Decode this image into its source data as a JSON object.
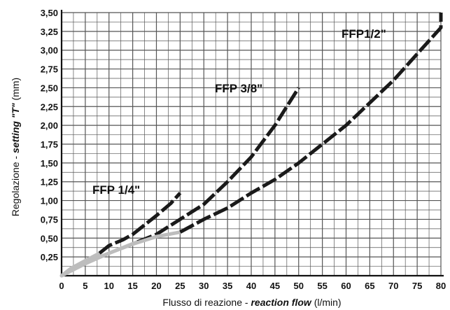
{
  "chart_data": {
    "type": "line",
    "xlabel_plain": "Flusso di reazione - ",
    "xlabel_em": "reaction flow",
    "xlabel_unit": " (l/min)",
    "ylabel_plain": "Regolazione - ",
    "ylabel_em": "setting \"T\"",
    "ylabel_unit": " (mm)",
    "xlim": [
      0,
      80
    ],
    "ylim": [
      0,
      3.5
    ],
    "x_ticks": [
      "0",
      "5",
      "10",
      "15",
      "20",
      "25",
      "30",
      "35",
      "40",
      "45",
      "50",
      "55",
      "60",
      "65",
      "70",
      "75",
      "80"
    ],
    "y_ticks": [
      "0,25",
      "0,50",
      "0,75",
      "1,00",
      "1,25",
      "1,50",
      "1,75",
      "2,00",
      "2,25",
      "2,50",
      "2,75",
      "3,00",
      "3,25",
      "3,50"
    ],
    "grid": true,
    "colors": {
      "dark": "#1a1a1a",
      "light": "#bdbdbd",
      "grid": "#555555"
    },
    "series": [
      {
        "name": "FFP 1/4\"",
        "gray_segment": [
          [
            0,
            0
          ],
          [
            2,
            0.1
          ],
          [
            5,
            0.2
          ],
          [
            8,
            0.3
          ]
        ],
        "dark_segment": [
          [
            8,
            0.3
          ],
          [
            10,
            0.4
          ],
          [
            13,
            0.48
          ],
          [
            15,
            0.55
          ],
          [
            18,
            0.7
          ],
          [
            20,
            0.8
          ],
          [
            23,
            0.96
          ],
          [
            25,
            1.1
          ]
        ]
      },
      {
        "name": "FFP 3/8\"",
        "gray_segment": [
          [
            0,
            0
          ],
          [
            3,
            0.1
          ],
          [
            6,
            0.2
          ],
          [
            10,
            0.3
          ],
          [
            14,
            0.4
          ],
          [
            16,
            0.45
          ]
        ],
        "dark_segment": [
          [
            16,
            0.45
          ],
          [
            20,
            0.55
          ],
          [
            25,
            0.75
          ],
          [
            30,
            0.95
          ],
          [
            35,
            1.25
          ],
          [
            40,
            1.58
          ],
          [
            45,
            2.0
          ],
          [
            48,
            2.3
          ],
          [
            50,
            2.5
          ]
        ]
      },
      {
        "name": "FFP1/2\"",
        "gray_segment": [
          [
            0,
            0
          ],
          [
            5,
            0.16
          ],
          [
            10,
            0.3
          ],
          [
            15,
            0.42
          ],
          [
            20,
            0.52
          ],
          [
            25,
            0.58
          ]
        ],
        "dark_segment": [
          [
            25,
            0.58
          ],
          [
            30,
            0.75
          ],
          [
            35,
            0.9
          ],
          [
            40,
            1.1
          ],
          [
            45,
            1.28
          ],
          [
            50,
            1.5
          ],
          [
            55,
            1.75
          ],
          [
            60,
            2.0
          ],
          [
            65,
            2.3
          ],
          [
            70,
            2.6
          ],
          [
            75,
            2.95
          ],
          [
            80,
            3.3
          ],
          [
            82,
            3.5
          ]
        ]
      }
    ]
  }
}
